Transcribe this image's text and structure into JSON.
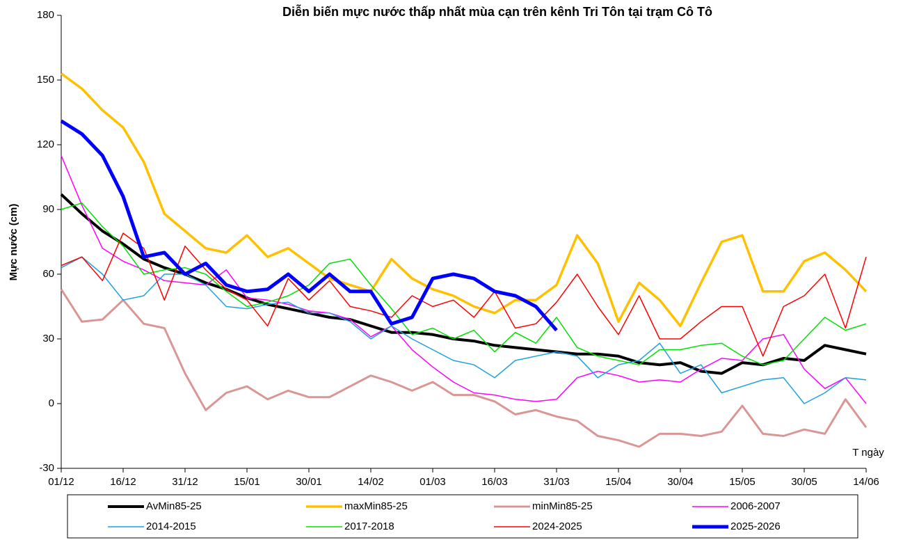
{
  "chart_data": {
    "type": "line",
    "title": "Diễn biến mực nước thấp nhất mùa cạn trên kênh Tri Tôn tại trạm Cô Tô",
    "y_label": "Mực nước (cm)",
    "x_label": "T ngày",
    "categories": [
      "01/12",
      null,
      null,
      "16/12",
      null,
      null,
      "31/12",
      null,
      null,
      "15/01",
      null,
      null,
      "30/01",
      null,
      null,
      "14/02",
      null,
      null,
      "01/03",
      null,
      null,
      "16/03",
      null,
      null,
      "31/03",
      null,
      null,
      "15/04",
      null,
      null,
      "30/04",
      null,
      null,
      "15/05",
      null,
      null,
      "30/05",
      null,
      null,
      "14/06"
    ],
    "ylim": [
      -30,
      180
    ],
    "yticks": [
      -30,
      0,
      30,
      60,
      90,
      120,
      150,
      180
    ],
    "series": [
      {
        "name": "AvMin85-25",
        "color": "#000000",
        "width": 4,
        "values": [
          97,
          88,
          80,
          74,
          67,
          63,
          60,
          56,
          53,
          49,
          46,
          44,
          42,
          40,
          39,
          36,
          33,
          33,
          32,
          30,
          29,
          27,
          26,
          25,
          24,
          23,
          23,
          22,
          19,
          18,
          19,
          15,
          14,
          19,
          18,
          21,
          20,
          27,
          25,
          23
        ]
      },
      {
        "name": "maxMin85-25",
        "color": "#ffc000",
        "width": 3.5,
        "values": [
          153,
          146,
          136,
          128,
          112,
          88,
          80,
          72,
          70,
          78,
          68,
          72,
          65,
          58,
          55,
          52,
          67,
          58,
          53,
          50,
          45,
          42,
          48,
          48,
          55,
          78,
          65,
          38,
          56,
          48,
          36,
          56,
          75,
          78,
          52,
          52,
          66,
          70,
          62,
          52
        ]
      },
      {
        "name": "minMin85-25",
        "color": "#d99694",
        "width": 3,
        "values": [
          53,
          38,
          39,
          48,
          37,
          35,
          14,
          -3,
          5,
          8,
          2,
          6,
          3,
          3,
          8,
          13,
          10,
          6,
          10,
          4,
          4,
          1,
          -5,
          -3,
          -6,
          -8,
          -15,
          -17,
          -20,
          -14,
          -14,
          -15,
          -13,
          -1,
          -14,
          -15,
          -12,
          -14,
          2,
          -11
        ]
      },
      {
        "name": "2006-2007",
        "color": "#ff00ff",
        "width": 1.5,
        "values": [
          115,
          92,
          72,
          66,
          62,
          57,
          56,
          55,
          62,
          49,
          48,
          46,
          43,
          42,
          39,
          31,
          36,
          25,
          17,
          10,
          5,
          4,
          2,
          1,
          2,
          12,
          15,
          13,
          10,
          11,
          10,
          16,
          21,
          20,
          30,
          32,
          16,
          7,
          12,
          0
        ]
      },
      {
        "name": "2014-2015",
        "color": "#1ba1e2",
        "width": 1.5,
        "values": [
          63,
          68,
          60,
          48,
          50,
          60,
          60,
          55,
          45,
          44,
          46,
          47,
          42,
          42,
          38,
          30,
          36,
          30,
          25,
          20,
          18,
          12,
          20,
          22,
          24,
          22,
          12,
          18,
          20,
          28,
          14,
          18,
          5,
          8,
          11,
          12,
          0,
          5,
          12,
          11
        ]
      },
      {
        "name": "2017-2018",
        "color": "#00e000",
        "width": 1.5,
        "values": [
          90,
          93,
          82,
          73,
          60,
          62,
          63,
          60,
          52,
          45,
          47,
          50,
          55,
          65,
          67,
          55,
          44,
          32,
          35,
          30,
          34,
          24,
          33,
          28,
          40,
          26,
          22,
          20,
          18,
          25,
          25,
          27,
          28,
          22,
          18,
          20,
          30,
          40,
          34,
          37
        ]
      },
      {
        "name": "2024-2025",
        "color": "#ff0000",
        "width": 1.5,
        "values": [
          64,
          68,
          57,
          79,
          72,
          48,
          73,
          62,
          53,
          48,
          36,
          58,
          48,
          57,
          45,
          43,
          40,
          50,
          45,
          48,
          40,
          52,
          35,
          37,
          47,
          60,
          45,
          32,
          50,
          30,
          30,
          38,
          45,
          45,
          22,
          45,
          50,
          60,
          35,
          68
        ]
      },
      {
        "name": "2025-2026",
        "color": "#0000ff",
        "width": 5,
        "values": [
          131,
          125,
          115,
          96,
          68,
          70,
          60,
          65,
          55,
          52,
          53,
          60,
          52,
          60,
          52,
          52,
          37,
          40,
          58,
          60,
          58,
          52,
          50,
          45,
          34,
          null,
          null,
          null,
          null,
          null,
          null,
          null,
          null,
          null,
          null,
          null,
          null,
          null,
          null,
          null
        ]
      }
    ]
  }
}
